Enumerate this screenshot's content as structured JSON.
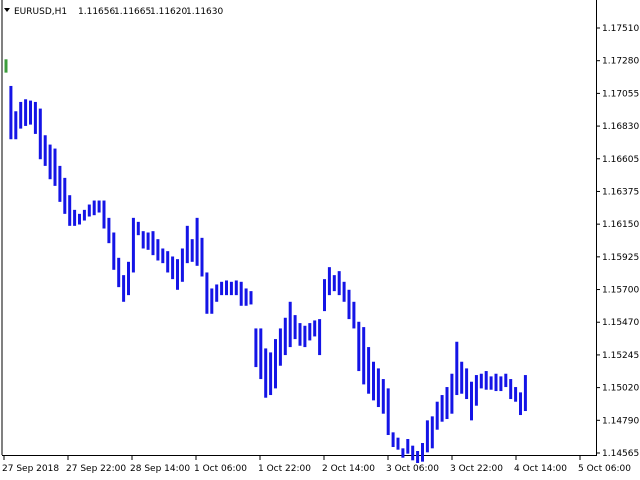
{
  "header": {
    "symbol": "EURUSD,H1",
    "open": "1.11656",
    "high": "1.11665",
    "low": "1.11620",
    "close": "1.11630"
  },
  "colors": {
    "bar": "#1414e6",
    "first_bar": "#3c9c3c",
    "frame": "#000000",
    "background": "#ffffff"
  },
  "chart_data": {
    "type": "bar",
    "subtype": "ohlc",
    "title": "",
    "xlabel": "",
    "ylabel": "",
    "ylim": [
      1.14565,
      1.17755
    ],
    "grid": false,
    "y_ticks": [
      "1.17510",
      "1.17280",
      "1.17055",
      "1.16830",
      "1.16605",
      "1.16375",
      "1.16150",
      "1.15925",
      "1.15700",
      "1.15470",
      "1.15245",
      "1.15020",
      "1.14790",
      "1.14565"
    ],
    "x_ticks": [
      "27 Sep 2018",
      "27 Sep 22:00",
      "28 Sep 14:00",
      "1 Oct 06:00",
      "1 Oct 22:00",
      "2 Oct 14:00",
      "3 Oct 06:00",
      "3 Oct 22:00",
      "4 Oct 14:00",
      "5 Oct 06:00"
    ],
    "bars": [
      [
        1.1752,
        1.1742
      ],
      [
        1.1732,
        1.1692
      ],
      [
        1.1713,
        1.1692
      ],
      [
        1.172,
        1.17
      ],
      [
        1.1722,
        1.1702
      ],
      [
        1.1721,
        1.1703
      ],
      [
        1.172,
        1.1696
      ],
      [
        1.1715,
        1.1677
      ],
      [
        1.1695,
        1.1672
      ],
      [
        1.1688,
        1.1662
      ],
      [
        1.1685,
        1.1657
      ],
      [
        1.1672,
        1.1645
      ],
      [
        1.1663,
        1.1636
      ],
      [
        1.165,
        1.1627
      ],
      [
        1.1639,
        1.1627
      ],
      [
        1.1636,
        1.1628
      ],
      [
        1.1639,
        1.1631
      ],
      [
        1.1643,
        1.1634
      ],
      [
        1.1646,
        1.1635
      ],
      [
        1.1646,
        1.1637
      ],
      [
        1.1646,
        1.1625
      ],
      [
        1.1633,
        1.1614
      ],
      [
        1.1622,
        1.1594
      ],
      [
        1.1603,
        1.1581
      ],
      [
        1.159,
        1.157
      ],
      [
        1.16,
        1.1575
      ],
      [
        1.1633,
        1.1592
      ],
      [
        1.163,
        1.162
      ],
      [
        1.1623,
        1.161
      ],
      [
        1.1622,
        1.1609
      ],
      [
        1.1623,
        1.1605
      ],
      [
        1.1617,
        1.1601
      ],
      [
        1.161,
        1.1599
      ],
      [
        1.1608,
        1.1592
      ],
      [
        1.1604,
        1.1587
      ],
      [
        1.1602,
        1.1579
      ],
      [
        1.161,
        1.1585
      ],
      [
        1.1627,
        1.1599
      ],
      [
        1.1617,
        1.16
      ],
      [
        1.1633,
        1.1597
      ],
      [
        1.1618,
        1.1589
      ],
      [
        1.1592,
        1.1561
      ],
      [
        1.158,
        1.1561
      ],
      [
        1.1583,
        1.157
      ],
      [
        1.1585,
        1.1575
      ],
      [
        1.1586,
        1.1575
      ],
      [
        1.1585,
        1.1575
      ],
      [
        1.1586,
        1.1575
      ],
      [
        1.1585,
        1.1567
      ],
      [
        1.158,
        1.1567
      ],
      [
        1.1578,
        1.1568
      ],
      [
        1.155,
        1.1521
      ],
      [
        1.155,
        1.1512
      ],
      [
        1.1535,
        1.1498
      ],
      [
        1.1532,
        1.15
      ],
      [
        1.1542,
        1.1505
      ],
      [
        1.155,
        1.1522
      ],
      [
        1.1558,
        1.153
      ],
      [
        1.157,
        1.1536
      ],
      [
        1.156,
        1.1542
      ],
      [
        1.1554,
        1.1537
      ],
      [
        1.1552,
        1.1536
      ],
      [
        1.1554,
        1.1541
      ],
      [
        1.1556,
        1.1544
      ],
      [
        1.1557,
        1.153
      ],
      [
        1.1587,
        1.1563
      ],
      [
        1.1596,
        1.1575
      ],
      [
        1.159,
        1.1578
      ],
      [
        1.1593,
        1.1575
      ],
      [
        1.1585,
        1.157
      ],
      [
        1.1579,
        1.1557
      ],
      [
        1.157,
        1.155
      ],
      [
        1.1555,
        1.1518
      ],
      [
        1.1551,
        1.1508
      ],
      [
        1.1536,
        1.1501
      ],
      [
        1.1525,
        1.1496
      ],
      [
        1.152,
        1.1491
      ],
      [
        1.1512,
        1.1486
      ],
      [
        1.1505,
        1.147
      ],
      [
        1.1472,
        1.1461
      ],
      [
        1.1468,
        1.1459
      ],
      [
        1.146,
        1.1453
      ],
      [
        1.1467,
        1.1456
      ],
      [
        1.1462,
        1.1451
      ],
      [
        1.1458,
        1.1449
      ],
      [
        1.1464,
        1.145
      ],
      [
        1.1481,
        1.1457
      ],
      [
        1.1484,
        1.146
      ],
      [
        1.1495,
        1.1474
      ],
      [
        1.15,
        1.148
      ],
      [
        1.1506,
        1.1482
      ],
      [
        1.1516,
        1.1486
      ],
      [
        1.154,
        1.15
      ],
      [
        1.1525,
        1.1501
      ],
      [
        1.152,
        1.1497
      ],
      [
        1.151,
        1.1481
      ],
      [
        1.1515,
        1.1492
      ],
      [
        1.1516,
        1.1505
      ],
      [
        1.1518,
        1.1504
      ],
      [
        1.1514,
        1.1504
      ],
      [
        1.1516,
        1.1503
      ],
      [
        1.1514,
        1.1503
      ],
      [
        1.1516,
        1.1506
      ],
      [
        1.1512,
        1.1497
      ],
      [
        1.1506,
        1.1495
      ],
      [
        1.1502,
        1.1485
      ],
      [
        1.1515,
        1.1488
      ]
    ]
  }
}
